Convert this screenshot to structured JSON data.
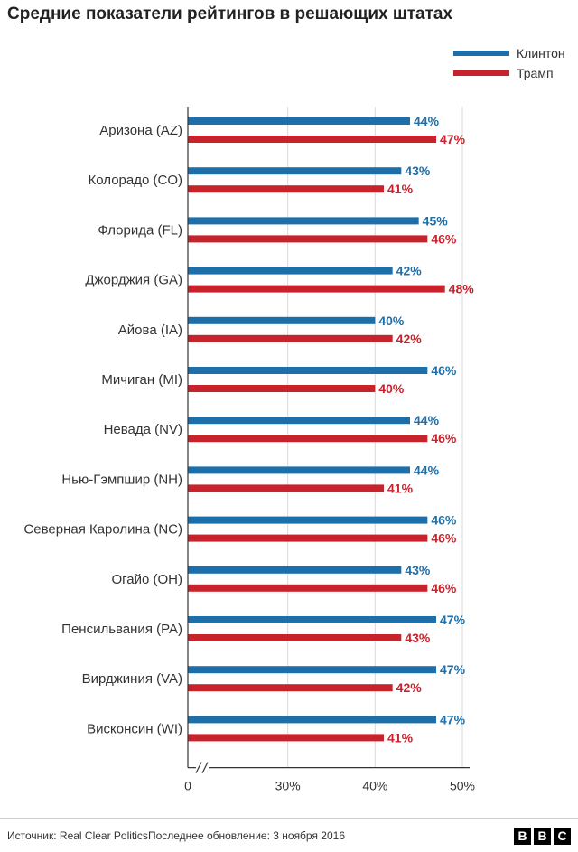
{
  "title": "Средние показатели рейтингов в решающих штатах",
  "legend": [
    {
      "name": "Клинтон",
      "color": "#1d6fa9"
    },
    {
      "name": "Трамп",
      "color": "#c8232d"
    }
  ],
  "footer": {
    "source": "Источник: Real Clear Politics",
    "updated": "Последнее обновление: 3 ноября 2016"
  },
  "logo": "BBC",
  "chart_data": {
    "type": "bar",
    "orientation": "horizontal",
    "title": "Средние показатели рейтингов в решающих штатах",
    "categories": [
      "Аризона (AZ)",
      "Колорадо (CO)",
      "Флорида (FL)",
      "Джорджия (GA)",
      "Айова (IA)",
      "Мичиган (MI)",
      "Невада (NV)",
      "Нью-Гэмпшир (NH)",
      "Северная Каролина (NC)",
      "Огайо (OH)",
      "Пенсильвания (PA)",
      "Вирджиния (VA)",
      "Висконсин (WI)"
    ],
    "series": [
      {
        "name": "Клинтон",
        "color": "#1d6fa9",
        "values": [
          44,
          43,
          45,
          42,
          40,
          46,
          44,
          44,
          46,
          43,
          47,
          47,
          47
        ]
      },
      {
        "name": "Трамп",
        "color": "#c8232d",
        "values": [
          47,
          41,
          46,
          48,
          42,
          40,
          46,
          41,
          46,
          46,
          43,
          42,
          41
        ]
      }
    ],
    "value_suffix": "%",
    "xlim": [
      0,
      50
    ],
    "axis_break": [
      0,
      20
    ],
    "xticks": [
      0,
      30,
      40,
      50
    ],
    "xtick_labels": [
      "0",
      "30%",
      "40%",
      "50%"
    ],
    "grid": true
  }
}
